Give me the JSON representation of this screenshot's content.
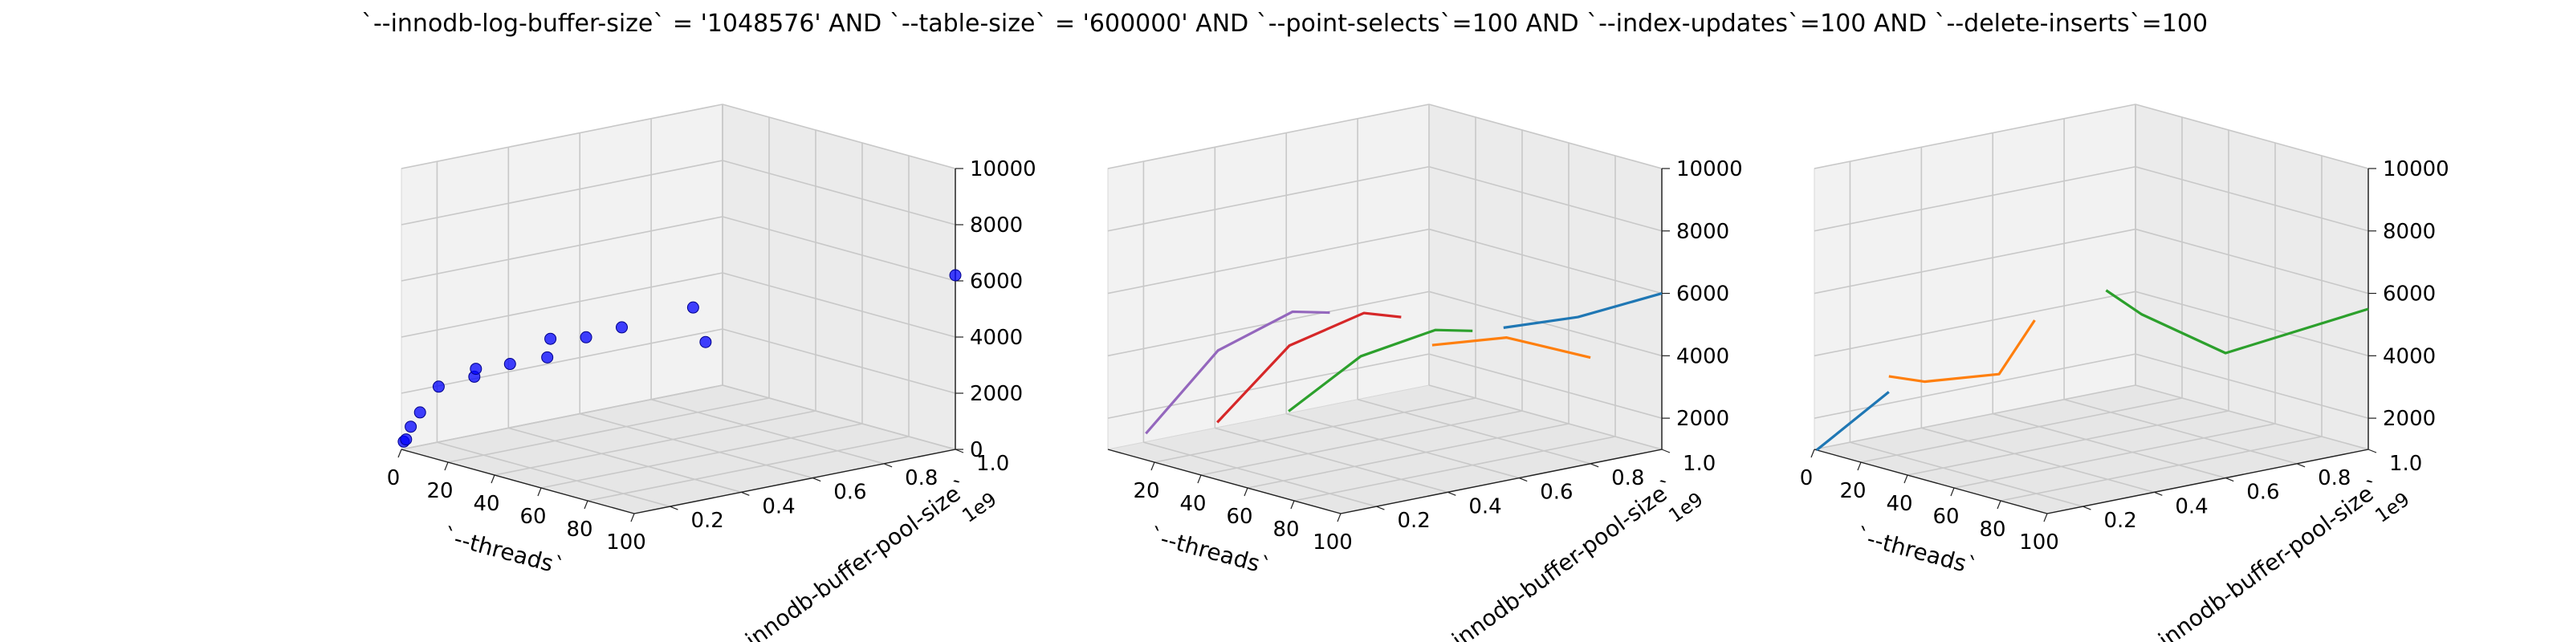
{
  "title": "`--innodb-log-buffer-size` = '1048576' AND `--table-size` = '600000'  AND `--point-selects`=100 AND `--index-updates`=100 AND `--delete-inserts`=100",
  "colors": {
    "scatter": "#0000ff",
    "tab_blue": "#1f77b4",
    "tab_orange": "#ff7f0e",
    "tab_green": "#2ca02c",
    "tab_red": "#d62728",
    "tab_purple": "#9467bd"
  },
  "chart_data": [
    {
      "type": "scatter",
      "xlabel": "`--threads`",
      "ylabel": "`--innodb-buffer-pool-size`",
      "zlabel": "",
      "xlim": [
        0,
        100
      ],
      "ylim": [
        0.1,
        1.0
      ],
      "zlim": [
        0,
        10000
      ],
      "xticks": [
        "0",
        "20",
        "40",
        "60",
        "80",
        "100"
      ],
      "yticks": [
        "0.2",
        "0.4",
        "0.6",
        "0.8",
        "1.0"
      ],
      "zticks": [
        "0",
        "2000",
        "4000",
        "6000",
        "8000",
        "10000"
      ],
      "yoffset_label": "1e9",
      "grid": true,
      "points": [
        {
          "x": 1,
          "y": 0.1,
          "z": 300
        },
        {
          "x": 2,
          "y": 0.1,
          "z": 400
        },
        {
          "x": 4,
          "y": 0.1,
          "z": 900
        },
        {
          "x": 8,
          "y": 0.1,
          "z": 1500
        },
        {
          "x": 16,
          "y": 0.1,
          "z": 2600
        },
        {
          "x": 16,
          "y": 0.2,
          "z": 2700
        },
        {
          "x": 16,
          "y": 0.3,
          "z": 2900
        },
        {
          "x": 32,
          "y": 0.1,
          "z": 3600
        },
        {
          "x": 32,
          "y": 0.3,
          "z": 3500
        },
        {
          "x": 64,
          "y": 0.1,
          "z": 5400
        },
        {
          "x": 64,
          "y": 0.2,
          "z": 5200
        },
        {
          "x": 64,
          "y": 0.3,
          "z": 5300
        },
        {
          "x": 64,
          "y": 0.5,
          "z": 5500
        },
        {
          "x": 100,
          "y": 0.3,
          "z": 5600
        },
        {
          "x": 100,
          "y": 1.0,
          "z": 6200
        }
      ]
    },
    {
      "type": "line",
      "xlabel": "`--threads`",
      "ylabel": "`--innodb-buffer-pool-size`",
      "zlabel": "",
      "xlim": [
        0,
        100
      ],
      "ylim": [
        0.1,
        1.0
      ],
      "zlim": [
        1000,
        10000
      ],
      "xticks": [
        "20",
        "40",
        "60",
        "80",
        "100"
      ],
      "yticks": [
        "0.2",
        "0.4",
        "0.6",
        "0.8",
        "1.0"
      ],
      "zticks": [
        "2000",
        "4000",
        "6000",
        "8000",
        "10000"
      ],
      "yoffset_label": "1e9",
      "grid": true,
      "series": [
        {
          "color": "#1f77b4",
          "points": [
            {
              "x": 32,
              "y": 1.0,
              "z": 3500
            },
            {
              "x": 64,
              "y": 1.0,
              "z": 4500
            },
            {
              "x": 100,
              "y": 1.0,
              "z": 6000
            }
          ]
        },
        {
          "color": "#ff7f0e",
          "points": [
            {
              "x": 32,
              "y": 0.8,
              "z": 3400
            },
            {
              "x": 64,
              "y": 0.8,
              "z": 4300
            },
            {
              "x": 100,
              "y": 0.8,
              "z": 4400
            }
          ]
        },
        {
          "color": "#2ca02c",
          "points": [
            {
              "x": 1,
              "y": 0.6,
              "z": 1100
            },
            {
              "x": 32,
              "y": 0.6,
              "z": 3500
            },
            {
              "x": 64,
              "y": 0.6,
              "z": 5000
            },
            {
              "x": 80,
              "y": 0.6,
              "z": 5300
            }
          ]
        },
        {
          "color": "#d62728",
          "points": [
            {
              "x": 1,
              "y": 0.4,
              "z": 1200
            },
            {
              "x": 32,
              "y": 0.4,
              "z": 4300
            },
            {
              "x": 64,
              "y": 0.4,
              "z": 6000
            },
            {
              "x": 80,
              "y": 0.4,
              "z": 6200
            }
          ]
        },
        {
          "color": "#9467bd",
          "points": [
            {
              "x": 1,
              "y": 0.2,
              "z": 1300
            },
            {
              "x": 32,
              "y": 0.2,
              "z": 4600
            },
            {
              "x": 64,
              "y": 0.2,
              "z": 6500
            },
            {
              "x": 80,
              "y": 0.2,
              "z": 6800
            }
          ]
        }
      ]
    },
    {
      "type": "line",
      "xlabel": "`--threads`",
      "ylabel": "`--innodb-buffer-pool-size`",
      "zlabel": "",
      "xlim": [
        0,
        100
      ],
      "ylim": [
        0.1,
        1.0
      ],
      "zlim": [
        1000,
        10000
      ],
      "xticks": [
        "0",
        "20",
        "40",
        "60",
        "80",
        "100"
      ],
      "yticks": [
        "0.2",
        "0.4",
        "0.6",
        "0.8",
        "1.0"
      ],
      "zticks": [
        "2000",
        "4000",
        "6000",
        "8000",
        "10000"
      ],
      "yoffset_label": "1e9",
      "grid": true,
      "series": [
        {
          "color": "#1f77b4",
          "points": [
            {
              "x": 1,
              "y": 0.1,
              "z": 1000
            },
            {
              "x": 32,
              "y": 0.1,
              "z": 3500
            }
          ]
        },
        {
          "color": "#ff7f0e",
          "points": [
            {
              "x": 32,
              "y": 0.1,
              "z": 4000
            },
            {
              "x": 32,
              "y": 0.2,
              "z": 3600
            },
            {
              "x": 64,
              "y": 0.2,
              "z": 4500
            },
            {
              "x": 64,
              "y": 0.3,
              "z": 6000
            }
          ]
        },
        {
          "color": "#2ca02c",
          "points": [
            {
              "x": 64,
              "y": 0.5,
              "z": 6500
            },
            {
              "x": 64,
              "y": 0.6,
              "z": 5500
            },
            {
              "x": 100,
              "y": 0.6,
              "z": 5000
            },
            {
              "x": 100,
              "y": 1.0,
              "z": 5500
            }
          ]
        }
      ]
    }
  ]
}
